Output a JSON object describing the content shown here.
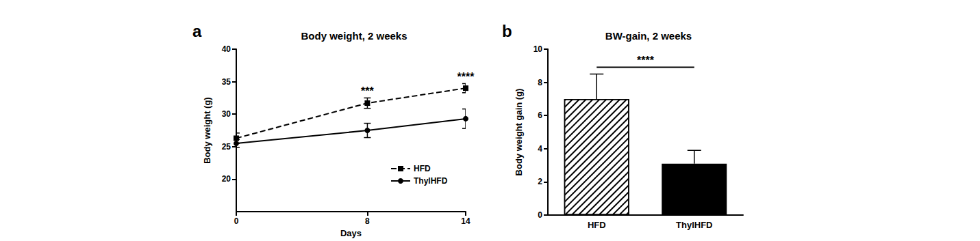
{
  "chart_data": [
    {
      "type": "line",
      "panel": "a",
      "title": "Body weight, 2 weeks",
      "x_label": "Days",
      "y_label": "Body weight (g)",
      "x": [
        0,
        8,
        14
      ],
      "xlim": [
        0,
        14
      ],
      "xticks": [
        0,
        8,
        14
      ],
      "ylim": [
        15,
        40
      ],
      "yticks": [
        20,
        25,
        30,
        35,
        40
      ],
      "legend": "lower right",
      "grid": false,
      "series": [
        {
          "name": "HFD",
          "color": "#000000",
          "marker": "square",
          "line_style": "dashed",
          "values": [
            26.3,
            31.7,
            34.0
          ],
          "errors": [
            0.8,
            0.8,
            0.7
          ]
        },
        {
          "name": "ThylHFD",
          "color": "#000000",
          "marker": "circle",
          "line_style": "solid",
          "values": [
            25.5,
            27.5,
            29.3
          ],
          "errors": [
            0.6,
            1.1,
            1.5
          ]
        }
      ],
      "annotations": [
        {
          "x": 8,
          "text": "***"
        },
        {
          "x": 14,
          "text": "****"
        }
      ]
    },
    {
      "type": "bar",
      "panel": "b",
      "title": "BW-gain, 2 weeks",
      "y_label": "Body weight gain (g)",
      "categories": [
        "HFD",
        "ThylHFD"
      ],
      "values": [
        7.0,
        3.1
      ],
      "errors": [
        1.5,
        0.8
      ],
      "colors": [
        "#ffffff",
        "#000000"
      ],
      "ylim": [
        0,
        10
      ],
      "yticks": [
        0,
        2,
        4,
        6,
        8,
        10
      ],
      "grid": false,
      "annotations": [
        {
          "from": "HFD",
          "to": "ThylHFD",
          "text": "****"
        }
      ]
    }
  ]
}
